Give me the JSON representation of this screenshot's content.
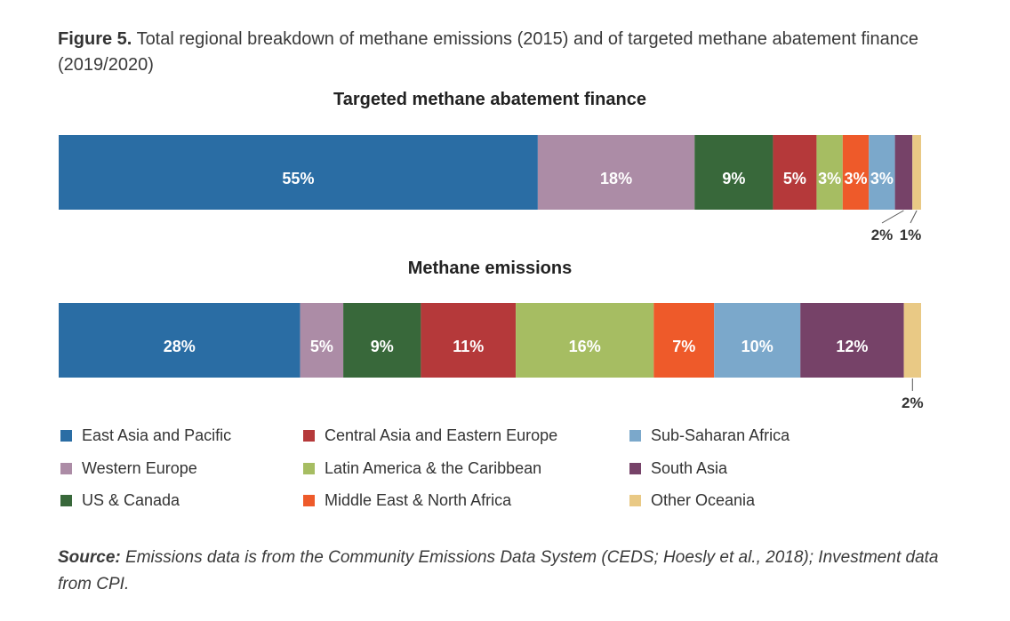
{
  "caption": {
    "label": "Figure 5.",
    "text": "Total regional breakdown of methane emissions (2015) and of targeted methane abatement finance (2019/2020)"
  },
  "source": {
    "label": "Source:",
    "text": "Emissions data is from the Community Emissions Data System (CEDS; Hoesly et al., 2018); Investment data from CPI."
  },
  "legend": [
    {
      "name": "East Asia and Pacific",
      "color": "#2a6da4"
    },
    {
      "name": "Western Europe",
      "color": "#ac8ca6"
    },
    {
      "name": "US & Canada",
      "color": "#38683a"
    },
    {
      "name": "Central Asia and Eastern Europe",
      "color": "#b5393a"
    },
    {
      "name": "Latin America & the Caribbean",
      "color": "#a6bd62"
    },
    {
      "name": "Middle East & North Africa",
      "color": "#ee5a2a"
    },
    {
      "name": "Sub-Saharan Africa",
      "color": "#7ba8cb"
    },
    {
      "name": "South Asia",
      "color": "#764268"
    },
    {
      "name": "Other Oceania",
      "color": "#e9c985"
    }
  ],
  "chart_data": [
    {
      "type": "bar",
      "orientation": "horizontal-stacked-100",
      "title": "Targeted methane abatement finance",
      "categories": [
        "East Asia and Pacific",
        "Western Europe",
        "US & Canada",
        "Central Asia and Eastern Europe",
        "Latin America & the Caribbean",
        "Middle East & North Africa",
        "Sub-Saharan Africa",
        "South Asia",
        "Other Oceania"
      ],
      "values": [
        55,
        18,
        9,
        5,
        3,
        3,
        3,
        2,
        1
      ],
      "labels": [
        "55%",
        "18%",
        "9%",
        "5%",
        "3%",
        "3%",
        "3%",
        "2%",
        "1%"
      ],
      "outside_labels": [
        "South Asia",
        "Other Oceania"
      ]
    },
    {
      "type": "bar",
      "orientation": "horizontal-stacked-100",
      "title": "Methane emissions",
      "categories": [
        "East Asia and Pacific",
        "Western Europe",
        "US & Canada",
        "Central Asia and Eastern Europe",
        "Latin America & the Caribbean",
        "Middle East & North Africa",
        "Sub-Saharan Africa",
        "South Asia",
        "Other Oceania"
      ],
      "values": [
        28,
        5,
        9,
        11,
        16,
        7,
        10,
        12,
        2
      ],
      "labels": [
        "28%",
        "5%",
        "9%",
        "11%",
        "16%",
        "7%",
        "10%",
        "12%",
        "2%"
      ],
      "outside_labels": [
        "Other Oceania"
      ]
    }
  ]
}
